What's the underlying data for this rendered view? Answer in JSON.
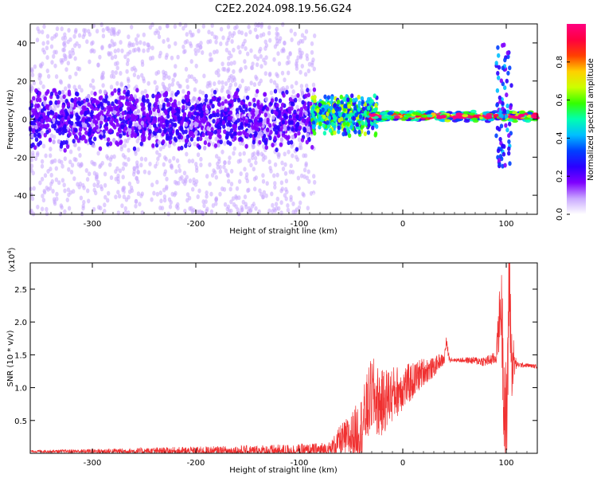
{
  "figure_title": "C2E2.2024.098.19.56.G24",
  "chart_data": [
    {
      "type": "heatmap",
      "xlabel": "Height of straight line (km)",
      "ylabel": "Frequency (Hz)",
      "xlim": [
        -360,
        130
      ],
      "ylim": [
        -50,
        50
      ],
      "xticks": [
        -300,
        -200,
        -100,
        0,
        100
      ],
      "yticks": [
        -40,
        -20,
        0,
        20,
        40
      ],
      "xtick_labels": [
        "-300",
        "-200",
        "-100",
        "0",
        "100"
      ],
      "ytick_labels": [
        "-40",
        "-20",
        "0",
        "20",
        "40"
      ],
      "colorbar": {
        "label": "Normalized spectral amplitude",
        "range": [
          0,
          1
        ],
        "ticks": [
          0,
          0.2,
          0.4,
          0.6,
          0.8
        ],
        "tick_labels": [
          "0.0",
          "0.2",
          "0.4",
          "0.6",
          "0.8"
        ],
        "colors": [
          "#ffffff",
          "#c9a8ff",
          "#7f00ff",
          "#2b00ff",
          "#0040ff",
          "#00bfff",
          "#00ffb0",
          "#33ff00",
          "#ccff00",
          "#ffd000",
          "#ff4000",
          "#ff0040",
          "#ff0080"
        ]
      },
      "regions": [
        {
          "name": "diffuse-noise",
          "x_range": [
            -360,
            -85
          ],
          "freq_range": [
            -50,
            50
          ],
          "amplitude": 0.08
        },
        {
          "name": "noisy-band",
          "x_range": [
            -360,
            -85
          ],
          "freq_center": 0,
          "freq_halfwidth": 12,
          "amplitude": 0.2
        },
        {
          "name": "transition",
          "x_range": [
            -88,
            -25
          ],
          "freq_center": 2,
          "freq_halfwidth": 8,
          "amplitude": 0.5
        },
        {
          "name": "main-tone",
          "x_range": [
            -30,
            130
          ],
          "freq_center": 1.5,
          "freq_halfwidth": 2,
          "amplitude": 0.9
        },
        {
          "name": "spike-near-100",
          "x_range": [
            90,
            105
          ],
          "freq_range": [
            -25,
            40
          ],
          "amplitude": 0.3
        }
      ]
    },
    {
      "type": "line",
      "xlabel": "Height of straight line (km)",
      "ylabel": "SNR (10 * v/v)",
      "y_multiplier": "(x10",
      "y_multiplier_exp": "4",
      "y_multiplier_close": ")",
      "xlim": [
        -360,
        130
      ],
      "ylim": [
        0,
        29000
      ],
      "xticks": [
        -300,
        -200,
        -100,
        0,
        100
      ],
      "yticks": [
        5000,
        10000,
        15000,
        20000,
        25000
      ],
      "xtick_labels": [
        "-300",
        "-200",
        "-100",
        "0",
        "100"
      ],
      "ytick_labels": [
        "0.5",
        "1.0",
        "1.5",
        "2.0",
        "2.5"
      ],
      "line_color": "#f03030",
      "series": [
        {
          "name": "SNR",
          "x": [
            -360,
            -250,
            -150,
            -90,
            -70,
            -60,
            -50,
            -40,
            -30,
            -25,
            -20,
            -15,
            -10,
            -5,
            0,
            10,
            20,
            30,
            35,
            40,
            42,
            45,
            50,
            60,
            70,
            80,
            90,
            95,
            100,
            103,
            105,
            110,
            120,
            130
          ],
          "y": [
            300,
            300,
            300,
            350,
            600,
            2000,
            2500,
            4000,
            9000,
            8000,
            7500,
            8500,
            9000,
            9500,
            10000,
            11000,
            12500,
            13000,
            14000,
            14200,
            17000,
            14400,
            14200,
            14200,
            14100,
            14000,
            14500,
            23000,
            1000,
            28000,
            14000,
            13500,
            13400,
            13200
          ],
          "noise_amplitude_by_x": [
            [
              -360,
              150
            ],
            [
              -70,
              1200
            ],
            [
              -30,
              6000
            ],
            [
              0,
              3500
            ],
            [
              30,
              1500
            ],
            [
              50,
              250
            ],
            [
              90,
              1000
            ],
            [
              100,
              12000
            ],
            [
              110,
              400
            ],
            [
              130,
              250
            ]
          ]
        }
      ]
    }
  ]
}
